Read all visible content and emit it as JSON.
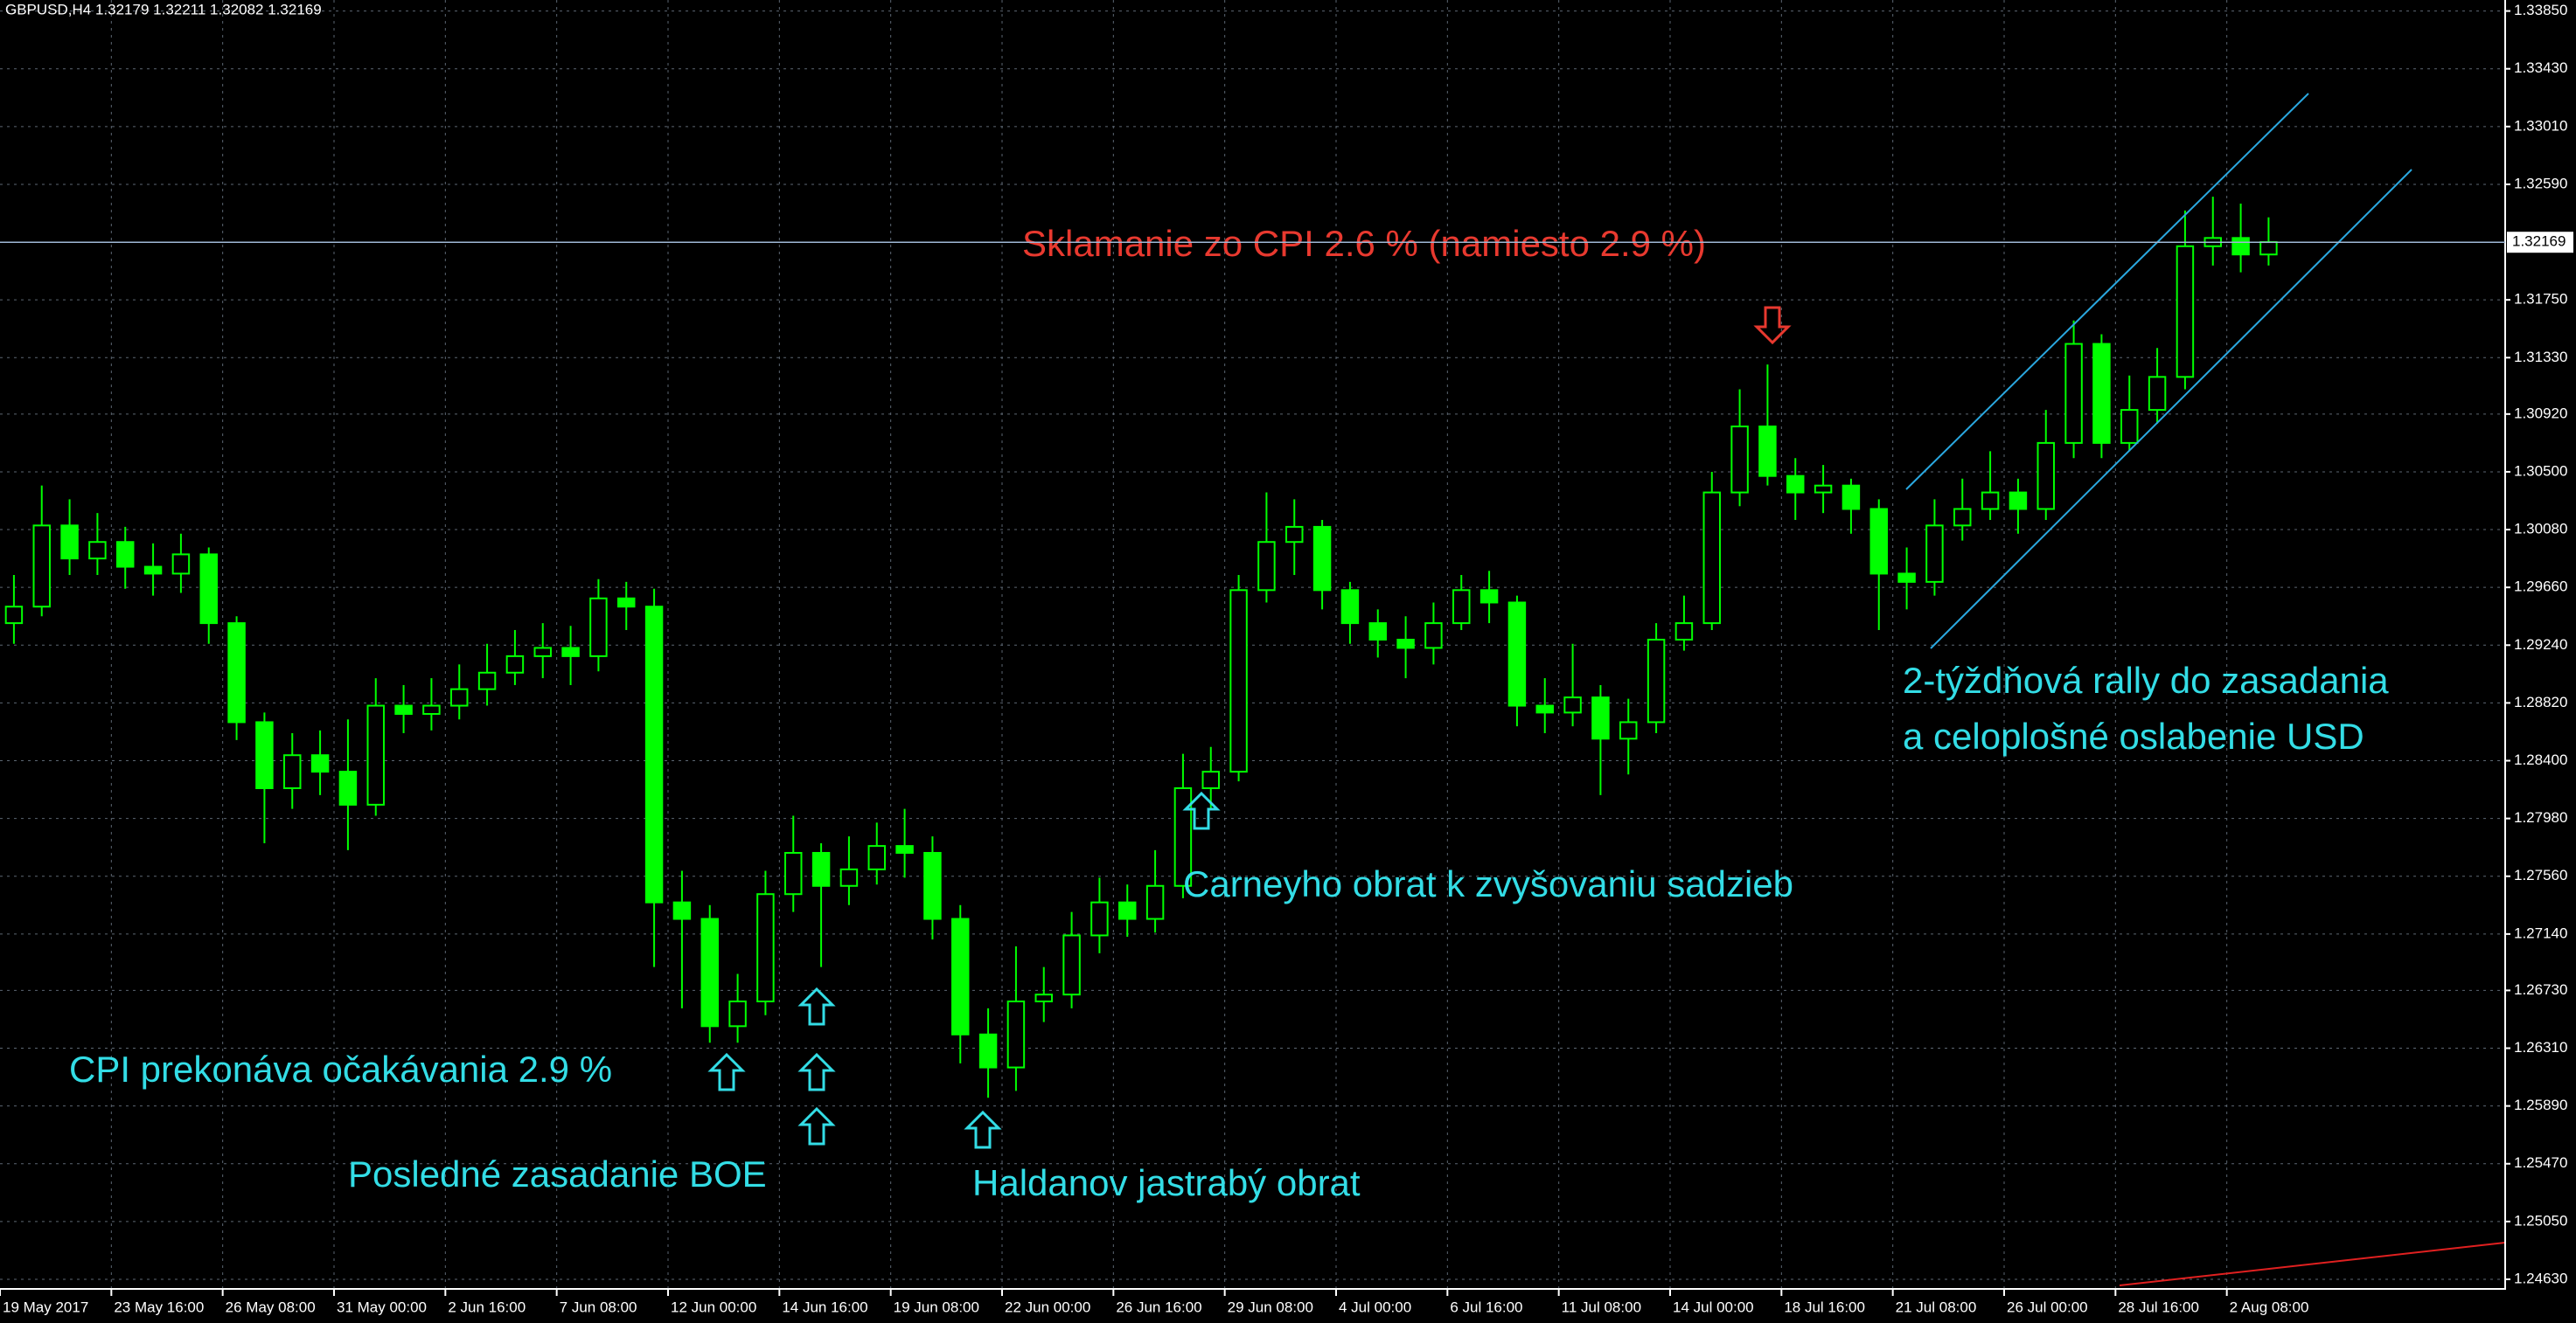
{
  "chart_data": {
    "type": "candlestick",
    "header": "GBPUSD,H4  1.32179 1.32211 1.32082 1.32169",
    "up_color": "#00ff00",
    "down_color": "#00ff00",
    "grid": true,
    "open": [
      1.294,
      1.2952,
      1.3011,
      1.2987,
      1.2999,
      1.2981,
      1.2976,
      1.299,
      1.294,
      1.2868,
      1.282,
      1.2844,
      1.2832,
      1.2808,
      1.288,
      1.2874,
      1.288,
      1.2892,
      1.2904,
      1.2916,
      1.2922,
      1.2916,
      1.2958,
      1.2952,
      1.2737,
      1.2725,
      1.2647,
      1.2665,
      1.2743,
      1.2773,
      1.2749,
      1.2761,
      1.2778,
      1.2773,
      1.2725,
      1.2641,
      1.2617,
      1.2665,
      1.267,
      1.2713,
      1.2737,
      1.2725,
      1.2749,
      1.282,
      1.2832,
      1.2964,
      1.2999,
      1.301,
      1.2964,
      1.294,
      1.2928,
      1.2922,
      1.294,
      1.2964,
      1.2955,
      1.288,
      1.2875,
      1.2886,
      1.2856,
      1.2868,
      1.2928,
      1.294,
      1.3035,
      1.3083,
      1.3047,
      1.3035,
      1.304,
      1.3023,
      1.2976,
      1.297,
      1.3011,
      1.3023,
      1.3035,
      1.3023,
      1.3071,
      1.3143,
      1.3071,
      1.3095,
      1.3119,
      1.3214,
      1.322,
      1.3208
    ],
    "high": [
      1.2975,
      1.304,
      1.303,
      1.302,
      1.301,
      1.2998,
      1.3005,
      1.2995,
      1.2945,
      1.2875,
      1.286,
      1.2862,
      1.287,
      1.29,
      1.2895,
      1.29,
      1.291,
      1.2925,
      1.2935,
      1.294,
      1.2938,
      1.2972,
      1.297,
      1.2965,
      1.276,
      1.2735,
      1.2685,
      1.276,
      1.28,
      1.278,
      1.2785,
      1.2795,
      1.2805,
      1.2785,
      1.2735,
      1.266,
      1.2705,
      1.269,
      1.273,
      1.2755,
      1.275,
      1.2775,
      1.2845,
      1.285,
      1.2975,
      1.3035,
      1.303,
      1.3015,
      1.297,
      1.295,
      1.2945,
      1.2955,
      1.2975,
      1.2978,
      1.296,
      1.29,
      1.2925,
      1.2895,
      1.2885,
      1.294,
      1.296,
      1.305,
      1.311,
      1.3128,
      1.306,
      1.3055,
      1.3045,
      1.303,
      1.2995,
      1.303,
      1.3045,
      1.3065,
      1.3045,
      1.3095,
      1.316,
      1.315,
      1.312,
      1.314,
      1.324,
      1.325,
      1.3245,
      1.3235
    ],
    "low": [
      1.2925,
      1.2945,
      1.2975,
      1.2975,
      1.2965,
      1.296,
      1.2962,
      1.2925,
      1.2855,
      1.278,
      1.2805,
      1.2815,
      1.2775,
      1.28,
      1.286,
      1.2862,
      1.287,
      1.288,
      1.2895,
      1.29,
      1.2895,
      1.2905,
      1.2935,
      1.269,
      1.266,
      1.2635,
      1.2635,
      1.2655,
      1.273,
      1.269,
      1.2735,
      1.275,
      1.2755,
      1.271,
      1.262,
      1.2595,
      1.26,
      1.265,
      1.266,
      1.27,
      1.2712,
      1.2715,
      1.274,
      1.2805,
      1.2825,
      1.2955,
      1.2975,
      1.295,
      1.2925,
      1.2915,
      1.29,
      1.291,
      1.2935,
      1.294,
      1.2865,
      1.286,
      1.2865,
      1.2815,
      1.283,
      1.286,
      1.292,
      1.2935,
      1.3025,
      1.304,
      1.3015,
      1.302,
      1.3005,
      1.2935,
      1.295,
      1.296,
      1.3,
      1.3015,
      1.3005,
      1.3015,
      1.306,
      1.306,
      1.3065,
      1.3085,
      1.311,
      1.32,
      1.3195,
      1.32
    ],
    "close": [
      1.2952,
      1.3011,
      1.2987,
      1.2999,
      1.2981,
      1.2976,
      1.299,
      1.294,
      1.2868,
      1.282,
      1.2844,
      1.2832,
      1.2808,
      1.288,
      1.2874,
      1.288,
      1.2892,
      1.2904,
      1.2916,
      1.2922,
      1.2916,
      1.2958,
      1.2952,
      1.2737,
      1.2725,
      1.2647,
      1.2665,
      1.2743,
      1.2773,
      1.2749,
      1.2761,
      1.2778,
      1.2773,
      1.2725,
      1.2641,
      1.2617,
      1.2665,
      1.267,
      1.2713,
      1.2737,
      1.2725,
      1.2749,
      1.282,
      1.2832,
      1.2964,
      1.2999,
      1.301,
      1.2964,
      1.294,
      1.2928,
      1.2922,
      1.294,
      1.2964,
      1.2955,
      1.288,
      1.2875,
      1.2886,
      1.2856,
      1.2868,
      1.2928,
      1.294,
      1.3035,
      1.3083,
      1.3047,
      1.3035,
      1.304,
      1.3023,
      1.2976,
      1.297,
      1.3011,
      1.3023,
      1.3035,
      1.3023,
      1.3071,
      1.3143,
      1.3071,
      1.3095,
      1.3119,
      1.3214,
      1.322,
      1.3208,
      1.3217
    ],
    "current_price": 1.32169,
    "xlim": [
      0,
      90
    ],
    "xticks": [
      {
        "value": 0,
        "label": "19 May 2017"
      },
      {
        "value": 4,
        "label": "23 May 16:00"
      },
      {
        "value": 8,
        "label": "26 May 08:00"
      },
      {
        "value": 12,
        "label": "31 May 00:00"
      },
      {
        "value": 16,
        "label": "2 Jun 16:00"
      },
      {
        "value": 20,
        "label": "7 Jun 08:00"
      },
      {
        "value": 24,
        "label": "12 Jun 00:00"
      },
      {
        "value": 28,
        "label": "14 Jun 16:00"
      },
      {
        "value": 32,
        "label": "19 Jun 08:00"
      },
      {
        "value": 36,
        "label": "22 Jun 00:00"
      },
      {
        "value": 40,
        "label": "26 Jun 16:00"
      },
      {
        "value": 44,
        "label": "29 Jun 08:00"
      },
      {
        "value": 48,
        "label": "4 Jul 00:00"
      },
      {
        "value": 52,
        "label": "6 Jul 16:00"
      },
      {
        "value": 56,
        "label": "11 Jul 08:00"
      },
      {
        "value": 60,
        "label": "14 Jul 00:00"
      },
      {
        "value": 64,
        "label": "18 Jul 16:00"
      },
      {
        "value": 68,
        "label": "21 Jul 08:00"
      },
      {
        "value": 72,
        "label": "26 Jul 00:00"
      },
      {
        "value": 76,
        "label": "28 Jul 16:00"
      },
      {
        "value": 80,
        "label": "2 Aug 08:00"
      }
    ],
    "ylim": [
      1.2456,
      1.3393
    ],
    "yticks": [
      {
        "value": 1.3385,
        "label": "1.33850"
      },
      {
        "value": 1.3343,
        "label": "1.33430"
      },
      {
        "value": 1.3301,
        "label": "1.33010"
      },
      {
        "value": 1.3259,
        "label": "1.32590"
      },
      {
        "value": 1.3175,
        "label": "1.31750"
      },
      {
        "value": 1.3133,
        "label": "1.31330"
      },
      {
        "value": 1.3092,
        "label": "1.30920"
      },
      {
        "value": 1.305,
        "label": "1.30500"
      },
      {
        "value": 1.3008,
        "label": "1.30080"
      },
      {
        "value": 1.2966,
        "label": "1.29660"
      },
      {
        "value": 1.2924,
        "label": "1.29240"
      },
      {
        "value": 1.2882,
        "label": "1.28820"
      },
      {
        "value": 1.284,
        "label": "1.28400"
      },
      {
        "value": 1.2798,
        "label": "1.27980"
      },
      {
        "value": 1.2756,
        "label": "1.27560"
      },
      {
        "value": 1.2714,
        "label": "1.27140"
      },
      {
        "value": 1.2673,
        "label": "1.26730"
      },
      {
        "value": 1.2631,
        "label": "1.26310"
      },
      {
        "value": 1.2589,
        "label": "1.25890"
      },
      {
        "value": 1.2547,
        "label": "1.25470"
      },
      {
        "value": 1.2505,
        "label": "1.25050"
      },
      {
        "value": 1.2463,
        "label": "1.24630"
      }
    ],
    "annotations": [
      {
        "text": "Sklamanie zo CPI 2.6 % (namiesto 2.9 %)",
        "color": "#e8392f"
      },
      {
        "text": "CPI prekonáva očakávania 2.9 %",
        "color": "#33dde6"
      },
      {
        "text": "Posledné zasadanie BOE",
        "color": "#33dde6"
      },
      {
        "text": "Haldanov jastrabý obrat",
        "color": "#33dde6"
      },
      {
        "text": "Carneyho obrat k zvyšovaniu sadzieb",
        "color": "#33dde6"
      },
      {
        "text": "2-týždňová rally do zasadania",
        "color": "#33dde6"
      },
      {
        "text": "a celoplošné oslabenie USD",
        "color": "#33dde6"
      }
    ]
  }
}
